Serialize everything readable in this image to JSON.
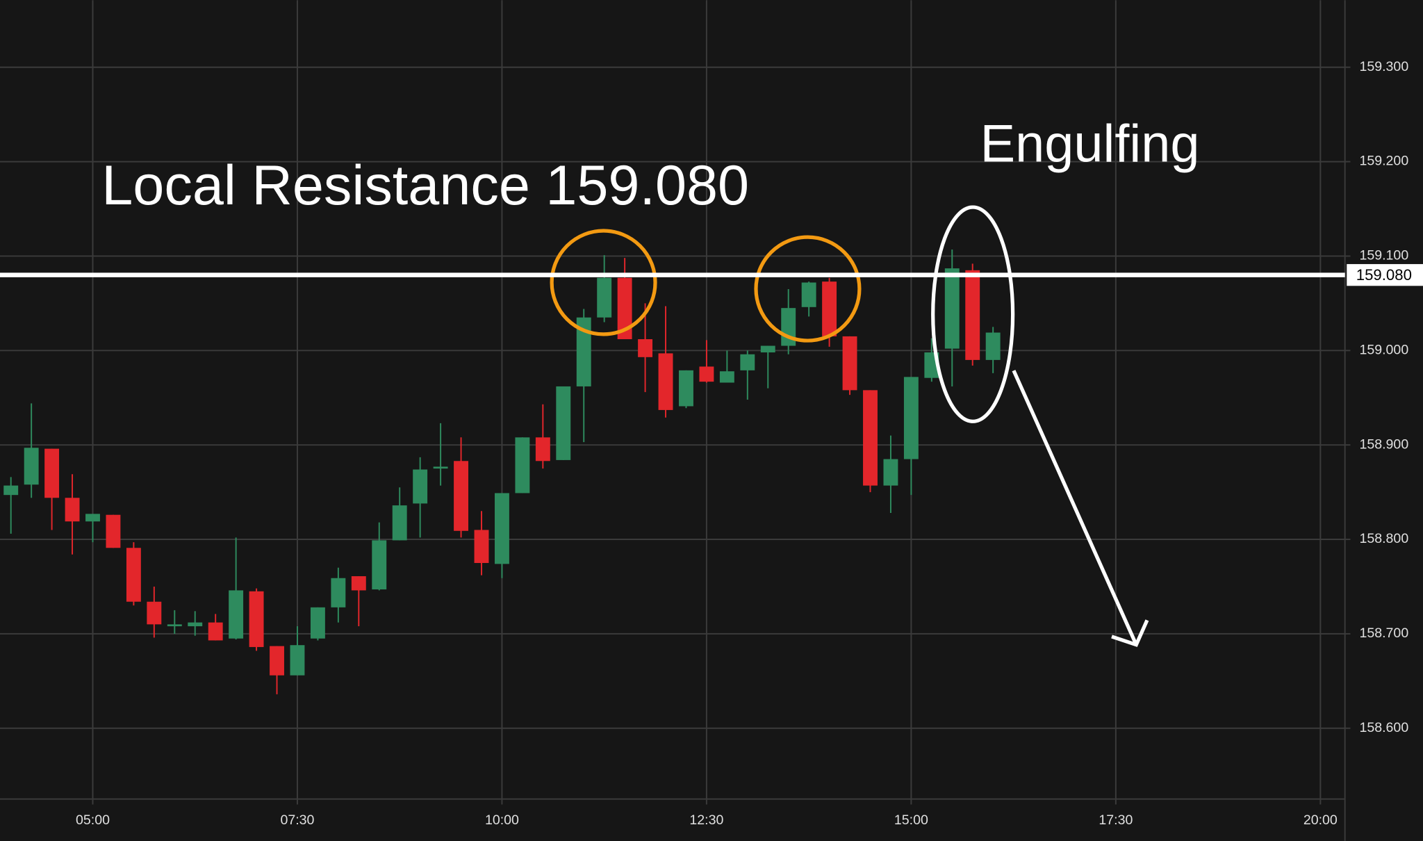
{
  "chart_data": {
    "type": "candlestick",
    "x": [
      "04:00",
      "04:15",
      "04:30",
      "04:45",
      "05:00",
      "05:15",
      "05:30",
      "05:45",
      "06:00",
      "06:15",
      "06:30",
      "06:45",
      "07:00",
      "07:15",
      "07:30",
      "07:45",
      "08:00",
      "08:15",
      "08:30",
      "08:45",
      "09:00",
      "09:15",
      "09:30",
      "09:45",
      "10:00",
      "10:15",
      "10:30",
      "10:45",
      "11:00",
      "11:15",
      "11:30",
      "11:45",
      "12:00",
      "12:15",
      "12:30",
      "12:45",
      "13:00",
      "13:15",
      "13:30",
      "13:45",
      "14:00",
      "14:15",
      "14:30",
      "14:45",
      "15:00",
      "15:15",
      "15:30",
      "15:45",
      "16:00"
    ],
    "open": [
      158.847,
      158.858,
      158.896,
      158.844,
      158.819,
      158.826,
      158.791,
      158.734,
      158.708,
      158.708,
      158.712,
      158.695,
      158.745,
      158.687,
      158.656,
      158.695,
      158.728,
      158.761,
      158.747,
      158.799,
      158.838,
      158.875,
      158.883,
      158.81,
      158.774,
      158.849,
      158.908,
      158.884,
      158.962,
      159.035,
      159.077,
      159.012,
      158.997,
      158.941,
      158.983,
      158.966,
      158.979,
      158.998,
      159.005,
      159.046,
      159.073,
      159.015,
      158.958,
      158.857,
      158.885,
      158.971,
      159.002,
      159.085,
      158.99
    ],
    "high": [
      158.866,
      158.944,
      158.896,
      158.869,
      158.827,
      158.826,
      158.797,
      158.75,
      158.725,
      158.724,
      158.721,
      158.802,
      158.748,
      158.687,
      158.708,
      158.728,
      158.77,
      158.761,
      158.818,
      158.855,
      158.887,
      158.923,
      158.908,
      158.83,
      158.849,
      158.908,
      158.943,
      158.962,
      159.044,
      159.101,
      159.098,
      159.05,
      159.047,
      158.979,
      159.011,
      159.0,
      159.0,
      159.005,
      159.065,
      159.073,
      159.077,
      159.015,
      158.958,
      158.91,
      158.972,
      159.013,
      159.107,
      159.092,
      159.025
    ],
    "low": [
      158.806,
      158.844,
      158.81,
      158.784,
      158.797,
      158.791,
      158.73,
      158.696,
      158.7,
      158.698,
      158.693,
      158.694,
      158.682,
      158.636,
      158.656,
      158.693,
      158.712,
      158.708,
      158.746,
      158.799,
      158.802,
      158.857,
      158.802,
      158.762,
      158.759,
      158.849,
      158.875,
      158.884,
      158.903,
      159.03,
      159.012,
      158.956,
      158.929,
      158.939,
      158.966,
      158.966,
      158.948,
      158.96,
      158.996,
      159.036,
      159.004,
      158.953,
      158.85,
      158.828,
      158.847,
      158.967,
      158.962,
      158.984,
      158.976
    ],
    "close": [
      158.857,
      158.897,
      158.844,
      158.819,
      158.827,
      158.791,
      158.734,
      158.71,
      158.71,
      158.712,
      158.693,
      158.746,
      158.686,
      158.656,
      158.688,
      158.728,
      158.759,
      158.746,
      158.799,
      158.836,
      158.874,
      158.877,
      158.809,
      158.775,
      158.849,
      158.908,
      158.883,
      158.962,
      159.035,
      159.077,
      159.012,
      158.993,
      158.937,
      158.979,
      158.967,
      158.978,
      158.996,
      159.005,
      159.045,
      159.072,
      159.015,
      158.958,
      158.857,
      158.885,
      158.972,
      158.998,
      159.087,
      158.99,
      159.019
    ],
    "up_color": "#2e8b5e",
    "down_color": "#e3262b",
    "xlim": [
      "03:52",
      "20:18"
    ],
    "xticks": [
      "05:00",
      "07:30",
      "10:00",
      "12:30",
      "15:00",
      "17:30",
      "20:00"
    ],
    "ylim": [
      158.525,
      159.371
    ],
    "yticks": [
      {
        "value": 158.6,
        "label": "158.600"
      },
      {
        "value": 158.7,
        "label": "158.700"
      },
      {
        "value": 158.8,
        "label": "158.800"
      },
      {
        "value": 158.9,
        "label": "158.900"
      },
      {
        "value": 159.0,
        "label": "159.000"
      },
      {
        "value": 159.1,
        "label": "159.100"
      },
      {
        "value": 159.2,
        "label": "159.200"
      },
      {
        "value": 159.3,
        "label": "159.300"
      }
    ],
    "grid": true,
    "resistance": {
      "value": 159.08,
      "label": "159.080"
    },
    "annotations": [
      "Local Resistance 159.080",
      "Engulfing"
    ]
  }
}
